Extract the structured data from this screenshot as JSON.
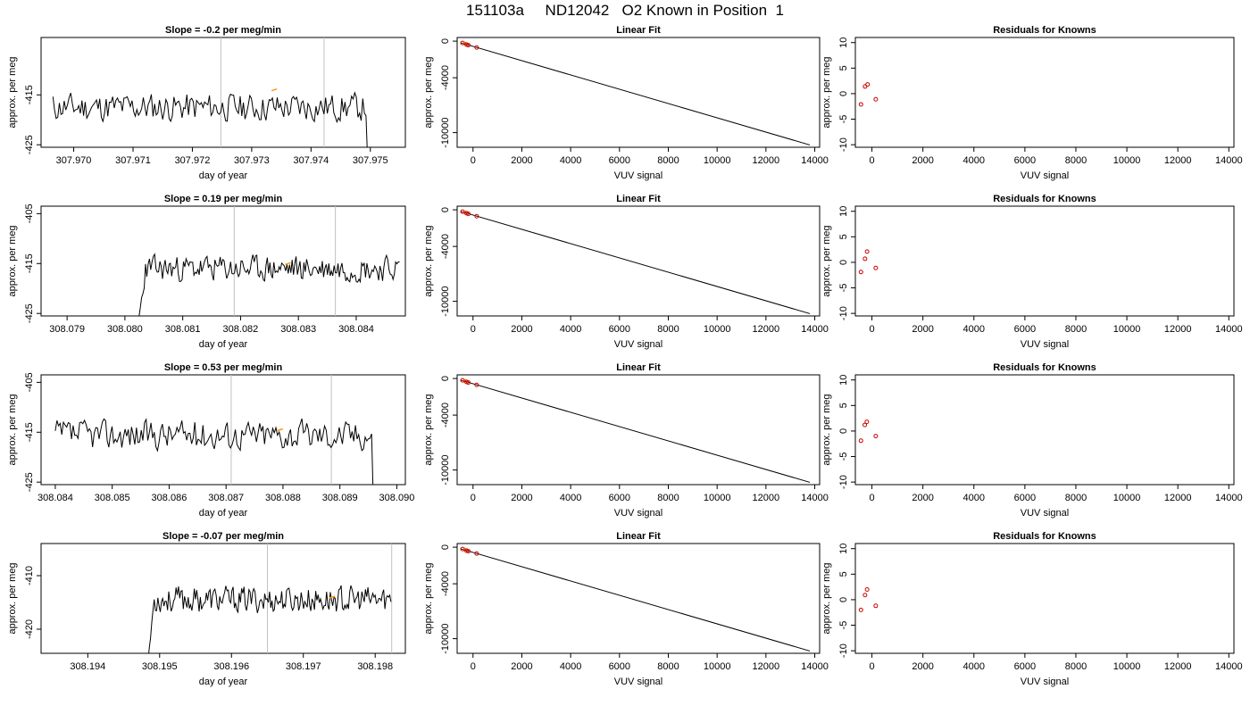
{
  "page_title": "151103a     ND12042   O2 Known in Position  1",
  "colors": {
    "trace": "#000000",
    "marker": "#cc0000",
    "marker_highlight": "#ff9900",
    "window_line": "#c0c0c0",
    "axis": "#000000"
  },
  "chart_data": [
    {
      "id": "ts-1",
      "type": "line",
      "title": "Slope =  -0.2  per meg/min",
      "xlabel": "day of year",
      "ylabel": "approx. per meg",
      "xlim": [
        307.96945,
        307.97559
      ],
      "ylim": [
        -425.5,
        -403.5
      ],
      "xticks": [
        307.97,
        307.971,
        307.972,
        307.973,
        307.974,
        307.975
      ],
      "xtick_labels": [
        "307.970",
        "307.971",
        "307.972",
        "307.973",
        "307.974",
        "307.975"
      ],
      "yticks": [
        -425,
        -415
      ],
      "ytick_labels": [
        "-425",
        "-415"
      ],
      "vlines": [
        307.97248,
        307.97422
      ],
      "x_range": [
        307.96965,
        307.97509
      ],
      "baseline": -417.5,
      "noise": 2.2,
      "drop": {
        "type": "end",
        "x": 307.97494,
        "to": -426
      },
      "highlight": {
        "x": 307.97338,
        "y": -414
      },
      "seed": 11
    },
    {
      "id": "ts-2",
      "type": "line",
      "title": "Slope =  0.19  per meg/min",
      "xlabel": "day of year",
      "ylabel": "approx. per meg",
      "xlim": [
        308.07855,
        308.08485
      ],
      "ylim": [
        -425.5,
        -403.5
      ],
      "xticks": [
        308.079,
        308.08,
        308.081,
        308.082,
        308.083,
        308.084
      ],
      "xtick_labels": [
        "308.079",
        "308.080",
        "308.081",
        "308.082",
        "308.083",
        "308.084"
      ],
      "yticks": [
        -425,
        -415,
        -405
      ],
      "ytick_labels": [
        "-425",
        "-415",
        "-405"
      ],
      "vlines": [
        308.08189,
        308.08364
      ],
      "x_range": [
        308.08022,
        308.08475
      ],
      "baseline": -416,
      "noise": 2.0,
      "drop": {
        "type": "start",
        "x": 308.08036,
        "from": -428
      },
      "highlight": {
        "x": 308.08282,
        "y": -415
      },
      "seed": 23
    },
    {
      "id": "ts-3",
      "type": "line",
      "title": "Slope =  0.53  per meg/min",
      "xlabel": "day of year",
      "ylabel": "approx. per meg",
      "xlim": [
        308.08375,
        308.09015
      ],
      "ylim": [
        -425.5,
        -403.5
      ],
      "xticks": [
        308.084,
        308.085,
        308.086,
        308.087,
        308.088,
        308.089,
        308.09
      ],
      "xtick_labels": [
        "308.084",
        "308.085",
        "308.086",
        "308.087",
        "308.088",
        "308.089",
        "308.090"
      ],
      "yticks": [
        -425,
        -415,
        -405
      ],
      "ytick_labels": [
        "-425",
        "-415",
        "-405"
      ],
      "vlines": [
        308.08709,
        308.08885
      ],
      "x_range": [
        308.084,
        308.0897
      ],
      "baseline": -415.5,
      "noise": 2.3,
      "drop": {
        "type": "end",
        "x": 308.08958,
        "to": -426
      },
      "highlight": {
        "x": 308.08795,
        "y": -414.5
      },
      "seed": 37
    },
    {
      "id": "ts-4",
      "type": "line",
      "title": "Slope =  -0.07  per meg/min",
      "xlabel": "day of year",
      "ylabel": "approx. per meg",
      "xlim": [
        308.19335,
        308.19842
      ],
      "ylim": [
        -424.5,
        -404.0
      ],
      "xticks": [
        308.194,
        308.195,
        308.196,
        308.197,
        308.198
      ],
      "xtick_labels": [
        "308.194",
        "308.195",
        "308.196",
        "308.197",
        "308.198"
      ],
      "yticks": [
        -420,
        -410
      ],
      "ytick_labels": [
        "-420",
        "-410"
      ],
      "vlines": [
        308.1965,
        308.19823
      ],
      "x_range": [
        308.19484,
        308.19822
      ],
      "baseline": -414.5,
      "noise": 1.9,
      "drop": {
        "type": "start",
        "x": 308.19492,
        "from": -426
      },
      "highlight": {
        "x": 308.1974,
        "y": -414
      },
      "seed": 53
    },
    {
      "id": "fit-1",
      "type": "scatter",
      "title": "Linear Fit",
      "xlabel": "VUV signal",
      "ylabel": "approx. per meg",
      "xlim": [
        -650,
        14200
      ],
      "ylim": [
        -11600,
        400
      ],
      "xticks": [
        0,
        2000,
        4000,
        6000,
        8000,
        10000,
        12000,
        14000
      ],
      "xtick_labels": [
        "0",
        "2000",
        "4000",
        "6000",
        "8000",
        "10000",
        "12000",
        "14000"
      ],
      "yticks": [
        0,
        -4000,
        -10000
      ],
      "ytick_labels": [
        "0",
        "-4000",
        "-10000"
      ],
      "fit_line": {
        "x": [
          -500,
          13800
        ],
        "y": [
          -180,
          -11350
        ]
      },
      "points": [
        [
          -430,
          -200
        ],
        [
          -260,
          -380
        ],
        [
          -190,
          -440
        ],
        [
          150,
          -700
        ]
      ],
      "highlight_points": [
        [
          -320,
          -300
        ]
      ]
    },
    {
      "id": "fit-2",
      "type": "scatter",
      "title": "Linear Fit",
      "xlabel": "VUV signal",
      "ylabel": "approx. per meg",
      "xlim": [
        -650,
        14200
      ],
      "ylim": [
        -11600,
        400
      ],
      "xticks": [
        0,
        2000,
        4000,
        6000,
        8000,
        10000,
        12000,
        14000
      ],
      "xtick_labels": [
        "0",
        "2000",
        "4000",
        "6000",
        "8000",
        "10000",
        "12000",
        "14000"
      ],
      "yticks": [
        0,
        -4000,
        -10000
      ],
      "ytick_labels": [
        "0",
        "-4000",
        "-10000"
      ],
      "fit_line": {
        "x": [
          -500,
          13800
        ],
        "y": [
          -180,
          -11350
        ]
      },
      "points": [
        [
          -430,
          -200
        ],
        [
          -260,
          -380
        ],
        [
          -190,
          -440
        ],
        [
          150,
          -700
        ]
      ],
      "highlight_points": [
        [
          -320,
          -300
        ]
      ]
    },
    {
      "id": "fit-3",
      "type": "scatter",
      "title": "Linear Fit",
      "xlabel": "VUV signal",
      "ylabel": "approx. per meg",
      "xlim": [
        -650,
        14200
      ],
      "ylim": [
        -11600,
        400
      ],
      "xticks": [
        0,
        2000,
        4000,
        6000,
        8000,
        10000,
        12000,
        14000
      ],
      "xtick_labels": [
        "0",
        "2000",
        "4000",
        "6000",
        "8000",
        "10000",
        "12000",
        "14000"
      ],
      "yticks": [
        0,
        -4000,
        -10000
      ],
      "ytick_labels": [
        "0",
        "-4000",
        "-10000"
      ],
      "fit_line": {
        "x": [
          -500,
          13800
        ],
        "y": [
          -180,
          -11350
        ]
      },
      "points": [
        [
          -430,
          -200
        ],
        [
          -260,
          -380
        ],
        [
          -190,
          -440
        ],
        [
          150,
          -700
        ]
      ],
      "highlight_points": [
        [
          -320,
          -300
        ]
      ]
    },
    {
      "id": "fit-4",
      "type": "scatter",
      "title": "Linear Fit",
      "xlabel": "VUV signal",
      "ylabel": "approx. per meg",
      "xlim": [
        -650,
        14200
      ],
      "ylim": [
        -11600,
        400
      ],
      "xticks": [
        0,
        2000,
        4000,
        6000,
        8000,
        10000,
        12000,
        14000
      ],
      "xtick_labels": [
        "0",
        "2000",
        "4000",
        "6000",
        "8000",
        "10000",
        "12000",
        "14000"
      ],
      "yticks": [
        0,
        -4000,
        -10000
      ],
      "ytick_labels": [
        "0",
        "-4000",
        "-10000"
      ],
      "fit_line": {
        "x": [
          -500,
          13800
        ],
        "y": [
          -180,
          -11350
        ]
      },
      "points": [
        [
          -430,
          -200
        ],
        [
          -260,
          -380
        ],
        [
          -190,
          -440
        ],
        [
          150,
          -700
        ]
      ],
      "highlight_points": [
        [
          -320,
          -300
        ]
      ]
    },
    {
      "id": "res-1",
      "type": "scatter",
      "title": "Residuals for Knowns",
      "xlabel": "VUV signal",
      "ylabel": "approx. per meg",
      "xlim": [
        -650,
        14200
      ],
      "ylim": [
        -10.5,
        11
      ],
      "xticks": [
        0,
        2000,
        4000,
        6000,
        8000,
        10000,
        12000,
        14000
      ],
      "xtick_labels": [
        "0",
        "2000",
        "4000",
        "6000",
        "8000",
        "10000",
        "12000",
        "14000"
      ],
      "yticks": [
        -10,
        -5,
        0,
        5,
        10
      ],
      "ytick_labels": [
        "-10",
        "-5",
        "0",
        "5",
        "10"
      ],
      "points": [
        [
          -430,
          -2.1
        ],
        [
          -270,
          1.4
        ],
        [
          -170,
          1.8
        ],
        [
          150,
          -1.1
        ]
      ]
    },
    {
      "id": "res-2",
      "type": "scatter",
      "title": "Residuals for Knowns",
      "xlabel": "VUV signal",
      "ylabel": "approx. per meg",
      "xlim": [
        -650,
        14200
      ],
      "ylim": [
        -10.5,
        11
      ],
      "xticks": [
        0,
        2000,
        4000,
        6000,
        8000,
        10000,
        12000,
        14000
      ],
      "xtick_labels": [
        "0",
        "2000",
        "4000",
        "6000",
        "8000",
        "10000",
        "12000",
        "14000"
      ],
      "yticks": [
        -10,
        -5,
        0,
        5,
        10
      ],
      "ytick_labels": [
        "-10",
        "-5",
        "0",
        "5",
        "10"
      ],
      "points": [
        [
          -430,
          -1.9
        ],
        [
          -270,
          0.7
        ],
        [
          -190,
          2.1
        ],
        [
          150,
          -1.1
        ]
      ]
    },
    {
      "id": "res-3",
      "type": "scatter",
      "title": "Residuals for Knowns",
      "xlabel": "VUV signal",
      "ylabel": "approx. per meg",
      "xlim": [
        -650,
        14200
      ],
      "ylim": [
        -10.5,
        11
      ],
      "xticks": [
        0,
        2000,
        4000,
        6000,
        8000,
        10000,
        12000,
        14000
      ],
      "xtick_labels": [
        "0",
        "2000",
        "4000",
        "6000",
        "8000",
        "10000",
        "12000",
        "14000"
      ],
      "yticks": [
        -10,
        -5,
        0,
        5,
        10
      ],
      "ytick_labels": [
        "-10",
        "-5",
        "0",
        "5",
        "10"
      ],
      "points": [
        [
          -430,
          -1.9
        ],
        [
          -280,
          1.2
        ],
        [
          -200,
          1.8
        ],
        [
          150,
          -1.0
        ]
      ]
    },
    {
      "id": "res-4",
      "type": "scatter",
      "title": "Residuals for Knowns",
      "xlabel": "VUV signal",
      "ylabel": "approx. per meg",
      "xlim": [
        -650,
        14200
      ],
      "ylim": [
        -10.5,
        11
      ],
      "xticks": [
        0,
        2000,
        4000,
        6000,
        8000,
        10000,
        12000,
        14000
      ],
      "xtick_labels": [
        "0",
        "2000",
        "4000",
        "6000",
        "8000",
        "10000",
        "12000",
        "14000"
      ],
      "yticks": [
        -10,
        -5,
        0,
        5,
        10
      ],
      "ytick_labels": [
        "-10",
        "-5",
        "0",
        "5",
        "10"
      ],
      "points": [
        [
          -430,
          -2.0
        ],
        [
          -270,
          0.9
        ],
        [
          -190,
          2.0
        ],
        [
          150,
          -1.2
        ]
      ]
    }
  ]
}
